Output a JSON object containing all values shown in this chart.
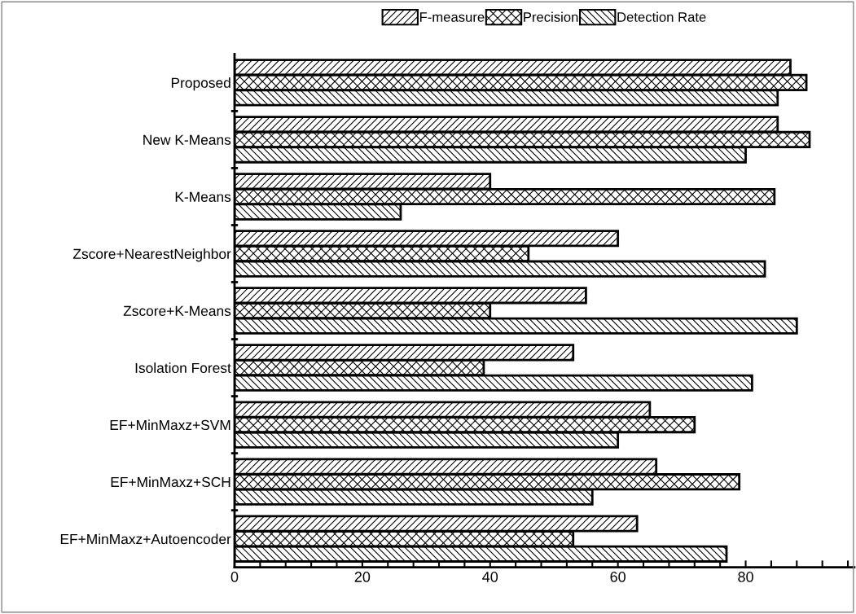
{
  "chart_data": {
    "type": "bar",
    "orientation": "horizontal",
    "categories": [
      "Proposed",
      "New K-Means",
      "K-Means",
      "Zscore+NearestNeighbor",
      "Zscore+K-Means",
      "Isolation Forest",
      "EF+MinMaxz+SVM",
      "EF+MinMaxz+SCH",
      "EF+MinMaxz+Autoencoder"
    ],
    "series": [
      {
        "name": "F-measure",
        "color": "#000000",
        "values": [
          87,
          85,
          40,
          60,
          55,
          53,
          65,
          66,
          63
        ]
      },
      {
        "name": "Precision",
        "color": "#000000",
        "values": [
          89.5,
          90,
          84.5,
          46,
          40,
          39,
          72,
          79,
          53
        ]
      },
      {
        "name": "Detection Rate",
        "color": "#000000",
        "values": [
          85,
          80,
          26,
          83,
          88,
          81,
          60,
          56,
          77
        ]
      }
    ],
    "xlim": [
      0,
      97
    ],
    "xticks": [
      0,
      {
        "value": 4,
        "label": null
      },
      {
        "value": 8,
        "label": null
      },
      {
        "value": 12,
        "label": null
      },
      {
        "value": 16,
        "label": null
      },
      20,
      {
        "value": 24,
        "label": null
      },
      {
        "value": 28,
        "label": null
      },
      {
        "value": 32,
        "label": null
      },
      {
        "value": 36,
        "label": null
      },
      40,
      {
        "value": 44,
        "label": null
      },
      {
        "value": 48,
        "label": null
      },
      {
        "value": 52,
        "label": null
      },
      {
        "value": 56,
        "label": null
      },
      60,
      {
        "value": 64,
        "label": null
      },
      {
        "value": 68,
        "label": null
      },
      {
        "value": 72,
        "label": null
      },
      {
        "value": 76,
        "label": null
      },
      80,
      {
        "value": 84,
        "label": null
      },
      {
        "value": 88,
        "label": null
      },
      {
        "value": 92,
        "label": null
      },
      {
        "value": 96,
        "label": null
      }
    ],
    "grid": false,
    "legend": "top"
  }
}
